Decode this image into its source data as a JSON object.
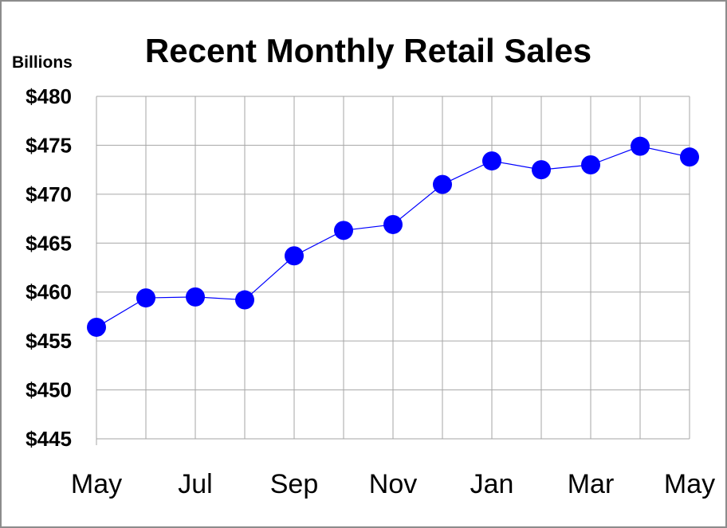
{
  "chart_data": {
    "type": "line",
    "title": "Recent Monthly Retail Sales",
    "ylabel": "Billions",
    "xlabel": "",
    "ylim": [
      445,
      480
    ],
    "y_ticks": [
      "$480",
      "$475",
      "$470",
      "$465",
      "$460",
      "$455",
      "$450",
      "$445"
    ],
    "x_tick_labels": [
      "May",
      "Jul",
      "Sep",
      "Nov",
      "Jan",
      "Mar",
      "May"
    ],
    "categories": [
      "May",
      "Jun",
      "Jul",
      "Aug",
      "Sep",
      "Oct",
      "Nov",
      "Dec",
      "Jan",
      "Feb",
      "Mar",
      "Apr",
      "May"
    ],
    "values": [
      456.4,
      459.4,
      459.5,
      459.2,
      463.7,
      466.3,
      466.9,
      471.0,
      473.4,
      472.5,
      473.0,
      474.9,
      473.8
    ],
    "grid": true,
    "legend": "none",
    "colors": {
      "line": "#0000ff",
      "marker": "#0000ff",
      "grid": "#a6a6a6"
    }
  }
}
